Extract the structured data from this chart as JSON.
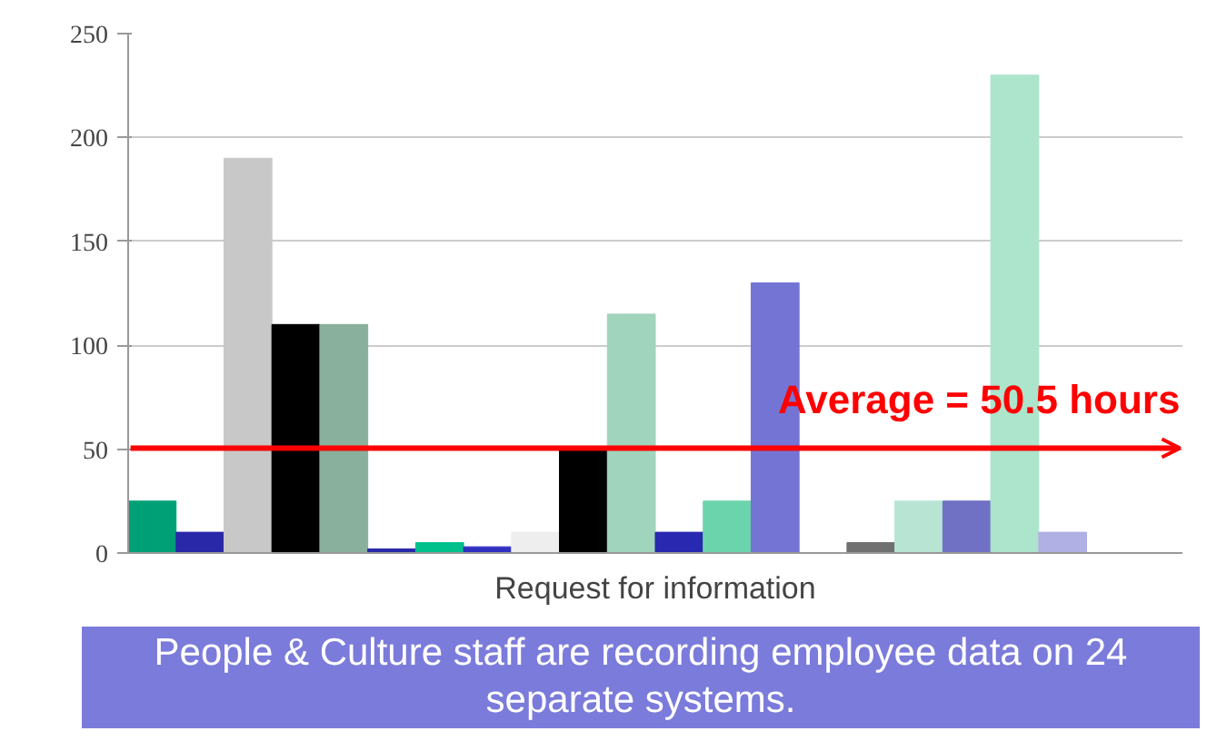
{
  "chart_data": {
    "type": "bar",
    "xlabel": "Request for information",
    "categories": [
      null,
      null,
      null,
      null,
      null,
      null,
      null,
      null,
      null,
      null,
      null,
      null,
      null,
      null,
      null,
      null,
      null,
      null,
      null,
      null,
      null,
      null
    ],
    "values": [
      25,
      10,
      190,
      110,
      110,
      2,
      5,
      3,
      10,
      50,
      115,
      10,
      25,
      130,
      null,
      5,
      25,
      25,
      230,
      10,
      null,
      null
    ],
    "colors": [
      "#00a077",
      "#2828a8",
      "#c8c8c8",
      "#000000",
      "#88b09c",
      "#2828a8",
      "#00c08c",
      "#3030c0",
      "#eeeeee",
      "#000000",
      "#a0d4bc",
      "#2828b0",
      "#6cd4ac",
      "#7474d4",
      "#ffffff",
      "#707070",
      "#b8e4d4",
      "#7070c4",
      "#ace4cc",
      "#b0b0e4",
      "#ffffff",
      "#ffffff"
    ],
    "ylim": [
      0,
      250
    ],
    "yticks": [
      0,
      50,
      100,
      150,
      200,
      250
    ],
    "grid": "y",
    "tick_labels": "y",
    "ref_lines": [
      {
        "axis": "y",
        "value": 50.5,
        "label": "Average = 50.5 hours",
        "color": "#ff0000"
      }
    ],
    "annotations": [
      "People & Culture staff are recording employee data on 24 separate systems."
    ]
  }
}
